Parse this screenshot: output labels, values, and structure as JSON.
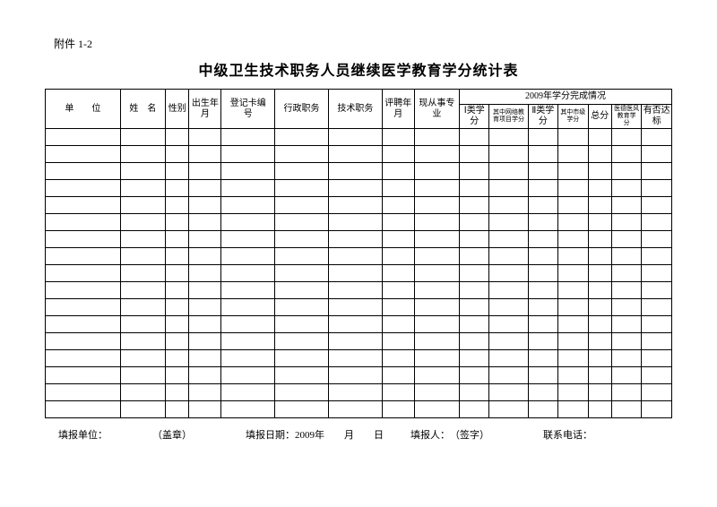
{
  "attachment": "附件 1-2",
  "title": "中级卫生技术职务人员继续医学教育学分统计表",
  "table": {
    "columns": {
      "unit": "单　　位",
      "name": "姓　名",
      "gender": "性别",
      "birth": "出生年月",
      "reg_card": "登记卡编　号",
      "admin_duty": "行政职务",
      "tech_duty": "技术职务",
      "appoint_ym": "评聘年月",
      "current_major": "现从事专　业",
      "year_section": "2009年学分完成情况",
      "cat1_credit": "Ⅰ类学分",
      "net_credit": "其中网络教育项目学分",
      "cat2_credit": "Ⅱ类学分",
      "city_credit": "其中市级学分",
      "total_credit": "总分",
      "ethics_credit": "医德医风教育学　分",
      "reach": "有否达标"
    },
    "col_widths": {
      "unit": 70,
      "name": 42,
      "gender": 22,
      "birth": 30,
      "reg_card": 50,
      "admin_duty": 50,
      "tech_duty": 50,
      "appoint_ym": 30,
      "current_major": 42,
      "cat1_credit": 28,
      "net_credit": 36,
      "cat2_credit": 28,
      "city_credit": 28,
      "total_credit": 22,
      "ethics_credit": 28,
      "reach": 28
    },
    "body_row_count": 17
  },
  "footer": {
    "report_unit_label": "填报单位：",
    "seal": "（盖章）",
    "report_date_label": "填报日期：",
    "report_date_value": "2009年　　月　　日",
    "reporter_label": "填报人：",
    "signature": "（签字）",
    "phone_label": "联系电话："
  },
  "style": {
    "background_color": "#ffffff",
    "border_color": "#000000",
    "text_color": "#000000",
    "title_fontsize": 16,
    "header_fontsize": 10,
    "small_header_fontsize": 7,
    "footer_fontsize": 11
  }
}
